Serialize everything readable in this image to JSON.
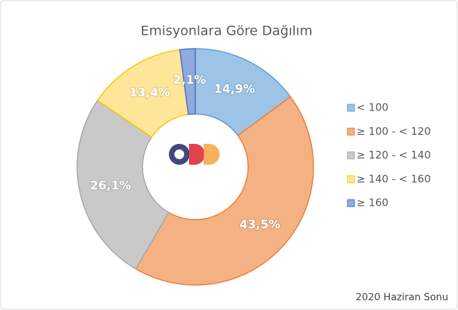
{
  "chart_data": {
    "type": "donut",
    "title": "Emisyonlara Göre Dağılım",
    "categories": [
      "< 100",
      "≥ 100 - < 120",
      "≥ 120 - < 140",
      "≥ 140 - < 160",
      "≥  160"
    ],
    "values": [
      14.9,
      43.5,
      26.1,
      13.4,
      2.1
    ],
    "value_labels": [
      "14,9%",
      "43,5%",
      "26,1%",
      "13,4%",
      "2,1%"
    ],
    "colors": [
      "#9dc3e6",
      "#f4b183",
      "#c9c9c9",
      "#ffe699",
      "#8faadc"
    ],
    "edge_colors": [
      "#5b9bd5",
      "#ed7d31",
      "#a5a5a5",
      "#ffc000",
      "#4472c4"
    ],
    "legend": "right",
    "footnote": "2020 Haziran Sonu"
  }
}
